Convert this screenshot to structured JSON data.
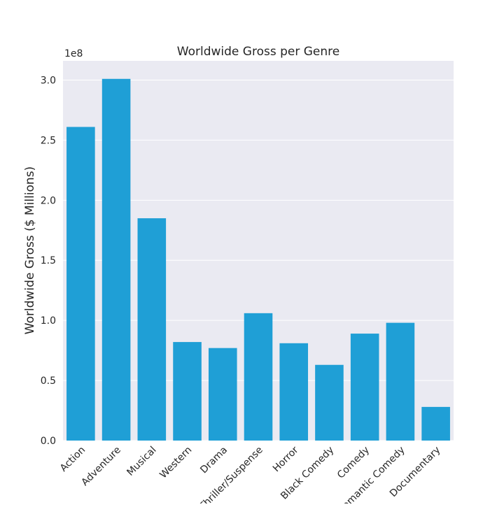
{
  "chart_data": {
    "type": "bar",
    "title": "Worldwide Gross per Genre",
    "xlabel": "",
    "ylabel": "Worldwide Gross ($ Millions)",
    "offset_label": "1e8",
    "categories": [
      "Action",
      "Adventure",
      "Musical",
      "Western",
      "Drama",
      "Thriller/Suspense",
      "Horror",
      "Black Comedy",
      "Comedy",
      "Romantic Comedy",
      "Documentary"
    ],
    "values": [
      261000000,
      301000000,
      185000000,
      82000000,
      77000000,
      106000000,
      81000000,
      63000000,
      89000000,
      98000000,
      28000000
    ],
    "yticks": [
      0,
      50000000,
      100000000,
      150000000,
      200000000,
      250000000,
      300000000
    ],
    "ytick_labels": [
      "0.0",
      "0.5",
      "1.0",
      "1.5",
      "2.0",
      "2.5",
      "3.0"
    ],
    "ylim": [
      0,
      316000000
    ],
    "grid": true,
    "colors": {
      "bar": "#1f9fd6",
      "plot_bg": "#eaeaf2",
      "grid": "#ffffff"
    }
  }
}
